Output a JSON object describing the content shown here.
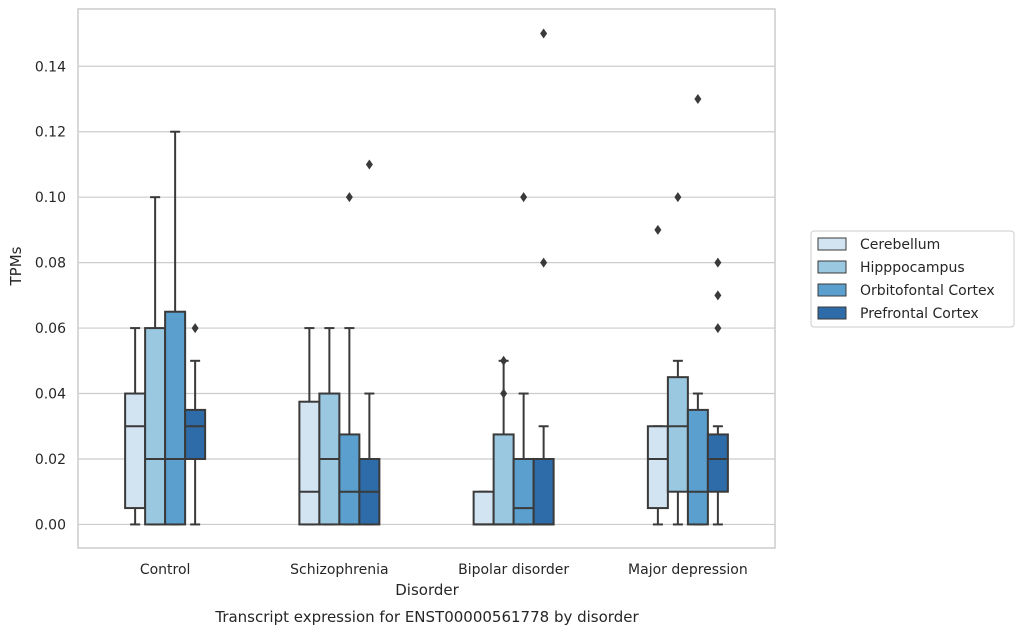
{
  "chart_data": {
    "type": "box",
    "title": "Transcript expression for ENST00000561778 by disorder",
    "xlabel": "Disorder",
    "ylabel": "TPMs",
    "ylim": [
      -0.0072,
      0.1575
    ],
    "yticks": [
      "0.00",
      "0.02",
      "0.04",
      "0.06",
      "0.08",
      "0.10",
      "0.12",
      "0.14"
    ],
    "grid": "horizontal",
    "legend_position": "right",
    "categories": [
      "Control",
      "Schizophrenia",
      "Bipolar disorder",
      "Major depression"
    ],
    "series": [
      {
        "name": "Cerebellum",
        "color": "#d2e3f2",
        "boxes": [
          {
            "whislo": 0.0,
            "q1": 0.005,
            "med": 0.03,
            "q3": 0.04,
            "whishi": 0.06,
            "fliers": []
          },
          {
            "whislo": 0.0,
            "q1": 0.0,
            "med": 0.01,
            "q3": 0.0375,
            "whishi": 0.06,
            "fliers": []
          },
          {
            "whislo": 0.0,
            "q1": 0.0,
            "med": 0.0,
            "q3": 0.01,
            "whishi": 0.01,
            "fliers": []
          },
          {
            "whislo": 0.0,
            "q1": 0.005,
            "med": 0.02,
            "q3": 0.03,
            "whishi": 0.03,
            "fliers": [
              0.09
            ]
          }
        ]
      },
      {
        "name": "Hipppocampus",
        "color": "#9ac8e0",
        "boxes": [
          {
            "whislo": 0.0,
            "q1": 0.0,
            "med": 0.02,
            "q3": 0.06,
            "whishi": 0.1,
            "fliers": []
          },
          {
            "whislo": 0.0,
            "q1": 0.0,
            "med": 0.02,
            "q3": 0.04,
            "whishi": 0.06,
            "fliers": []
          },
          {
            "whislo": 0.0,
            "q1": 0.0,
            "med": 0.0,
            "q3": 0.0275,
            "whishi": 0.05,
            "fliers": [
              0.04,
              0.05
            ]
          },
          {
            "whislo": 0.0,
            "q1": 0.01,
            "med": 0.03,
            "q3": 0.045,
            "whishi": 0.05,
            "fliers": [
              0.1
            ]
          }
        ]
      },
      {
        "name": "Orbitofontal Cortex",
        "color": "#5a9fcd",
        "boxes": [
          {
            "whislo": 0.0,
            "q1": 0.0,
            "med": 0.02,
            "q3": 0.065,
            "whishi": 0.12,
            "fliers": []
          },
          {
            "whislo": 0.0,
            "q1": 0.0,
            "med": 0.01,
            "q3": 0.0275,
            "whishi": 0.06,
            "fliers": [
              0.1
            ]
          },
          {
            "whislo": 0.0,
            "q1": 0.0,
            "med": 0.005,
            "q3": 0.02,
            "whishi": 0.04,
            "fliers": [
              0.1
            ]
          },
          {
            "whislo": 0.0,
            "q1": 0.0,
            "med": 0.01,
            "q3": 0.035,
            "whishi": 0.04,
            "fliers": [
              0.13
            ]
          }
        ]
      },
      {
        "name": "Prefrontal Cortex",
        "color": "#2d6ca8",
        "boxes": [
          {
            "whislo": 0.0,
            "q1": 0.02,
            "med": 0.03,
            "q3": 0.035,
            "whishi": 0.05,
            "fliers": [
              0.06
            ]
          },
          {
            "whislo": 0.0,
            "q1": 0.0,
            "med": 0.01,
            "q3": 0.02,
            "whishi": 0.04,
            "fliers": [
              0.11
            ]
          },
          {
            "whislo": 0.0,
            "q1": 0.0,
            "med": 0.0,
            "q3": 0.02,
            "whishi": 0.03,
            "fliers": [
              0.08,
              0.15
            ]
          },
          {
            "whislo": 0.0,
            "q1": 0.01,
            "med": 0.02,
            "q3": 0.0275,
            "whishi": 0.03,
            "fliers": [
              0.06,
              0.07,
              0.08
            ]
          }
        ]
      }
    ]
  }
}
